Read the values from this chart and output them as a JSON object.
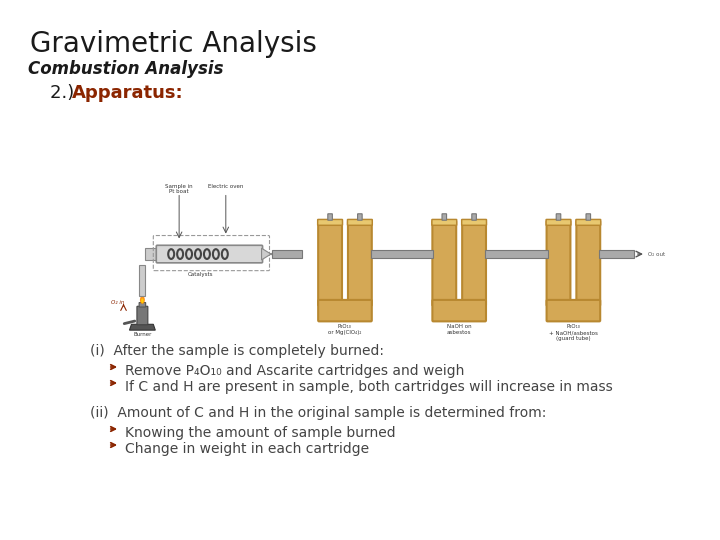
{
  "title": "Gravimetric Analysis",
  "subtitle": "Combustion Analysis",
  "section_label": "2.)  Apparatus:",
  "background_color": "#ffffff",
  "title_color": "#1a1a1a",
  "subtitle_color": "#1a1a1a",
  "section_color": "#8B2500",
  "body_color": "#444444",
  "bullet_color": "#8B2500",
  "title_fontsize": 20,
  "subtitle_fontsize": 12,
  "section_fontsize": 13,
  "body_fontsize": 10,
  "lines_i_head": "(i)  After the sample is completely burned:",
  "lines_i_b1": "Remove P₄O₁₀ and Ascarite cartridges and weigh",
  "lines_i_b2": "If C and H are present in sample, both cartridges will increase in mass",
  "lines_ii_head": "(ii)  Amount of C and H in the original sample is determined from:",
  "lines_ii_b1": "Knowing the amount of sample burned",
  "lines_ii_b2": "Change in weight in each cartridge",
  "u_tube_color": "#d4a855",
  "u_tube_edge": "#b88830",
  "connector_color": "#aaaaaa",
  "connector_edge": "#888888",
  "tube_body_color": "#cccccc",
  "tube_body_edge": "#888888"
}
